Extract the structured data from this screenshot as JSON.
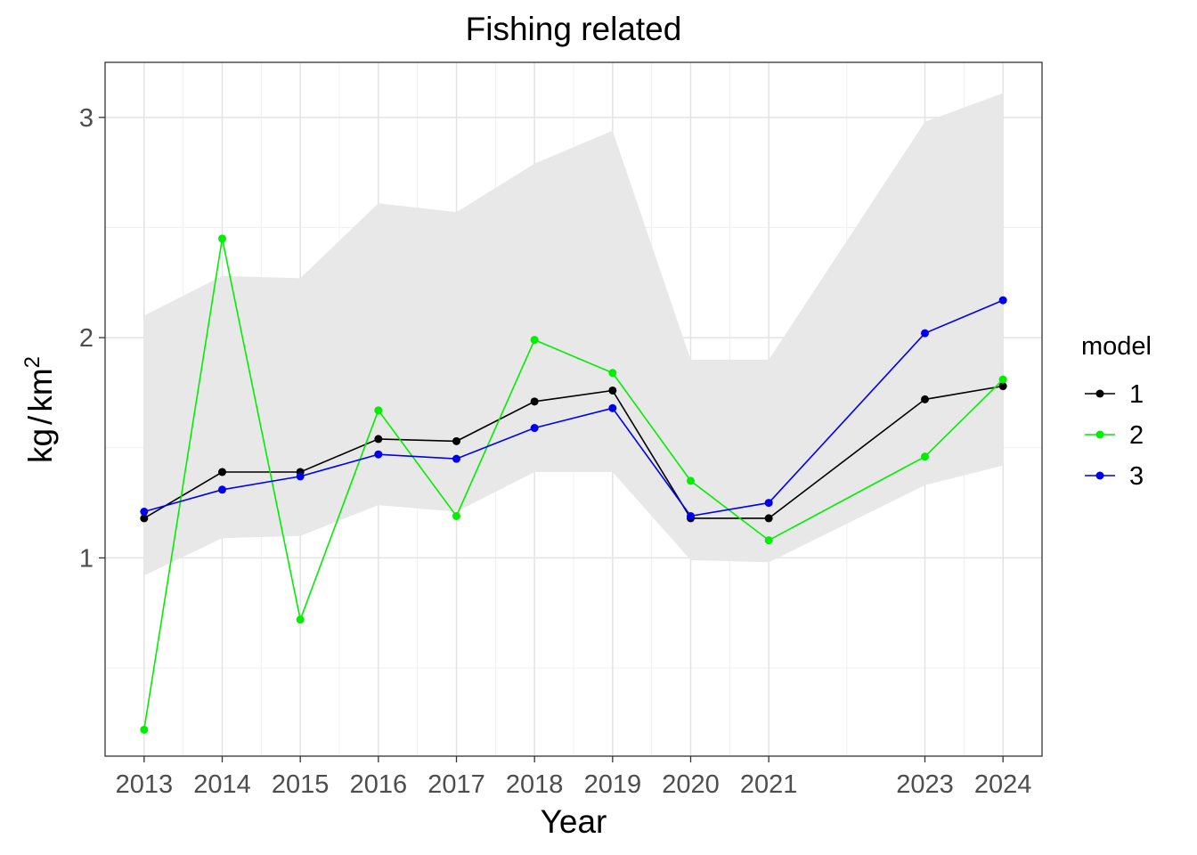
{
  "chart_data": {
    "type": "line",
    "title": "Fishing related",
    "xlabel": "Year",
    "ylabel": {
      "base": "kg",
      "sep": "/",
      "unit": "km",
      "exponent": "2"
    },
    "x": [
      2013,
      2014,
      2015,
      2016,
      2017,
      2018,
      2019,
      2020,
      2021,
      2023,
      2024
    ],
    "x_tick_labels": [
      "2013",
      "2014",
      "2015",
      "2016",
      "2017",
      "2018",
      "2019",
      "2020",
      "2021",
      "2023",
      "2024"
    ],
    "xlim": [
      2012.5,
      2024.5
    ],
    "y_ticks": [
      1,
      2,
      3
    ],
    "y_tick_labels": [
      "1",
      "2",
      "3"
    ],
    "ylim": [
      0.1,
      3.25
    ],
    "grid": true,
    "band": {
      "color": "#e8e8e8",
      "lower": [
        0.92,
        1.09,
        1.1,
        1.24,
        1.21,
        1.39,
        1.39,
        0.99,
        0.98,
        1.33,
        1.42
      ],
      "upper": [
        2.1,
        2.28,
        2.27,
        2.61,
        2.57,
        2.79,
        2.94,
        1.9,
        1.9,
        2.98,
        3.11
      ]
    },
    "legend_title": "model",
    "legend_position": "right",
    "series": [
      {
        "name": "1",
        "color": "#000000",
        "values": [
          1.18,
          1.39,
          1.39,
          1.54,
          1.53,
          1.71,
          1.76,
          1.18,
          1.18,
          1.72,
          1.78
        ]
      },
      {
        "name": "2",
        "color": "#00ee00",
        "values": [
          0.22,
          2.45,
          0.72,
          1.67,
          1.19,
          1.99,
          1.84,
          1.35,
          1.08,
          1.46,
          1.81
        ]
      },
      {
        "name": "3",
        "color": "#0000ee",
        "values": [
          1.21,
          1.31,
          1.37,
          1.47,
          1.45,
          1.59,
          1.68,
          1.19,
          1.25,
          2.02,
          2.17
        ]
      }
    ]
  }
}
